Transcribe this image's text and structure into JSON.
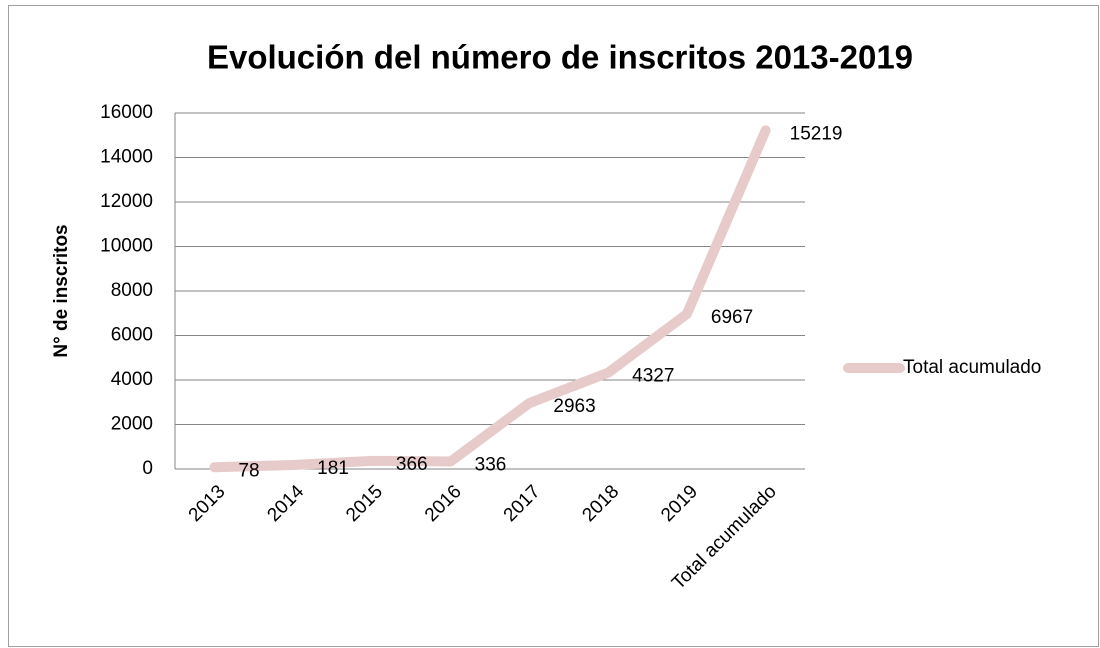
{
  "chart_data": {
    "type": "line",
    "title": "Evolución del número de inscritos 2013-2019",
    "y_label": "N° de inscritos",
    "categories": [
      "2013",
      "2014",
      "2015",
      "2016",
      "2017",
      "2018",
      "2019",
      "Total acumulado"
    ],
    "series": [
      {
        "name": "Total acumulado",
        "color": "#e6cbca",
        "values": [
          78,
          181,
          366,
          336,
          2963,
          4327,
          6967,
          15219
        ]
      }
    ],
    "ylim": [
      0,
      16000
    ],
    "yticks": [
      0,
      2000,
      4000,
      6000,
      8000,
      10000,
      12000,
      14000,
      16000
    ],
    "grid": true,
    "legend": "right"
  }
}
